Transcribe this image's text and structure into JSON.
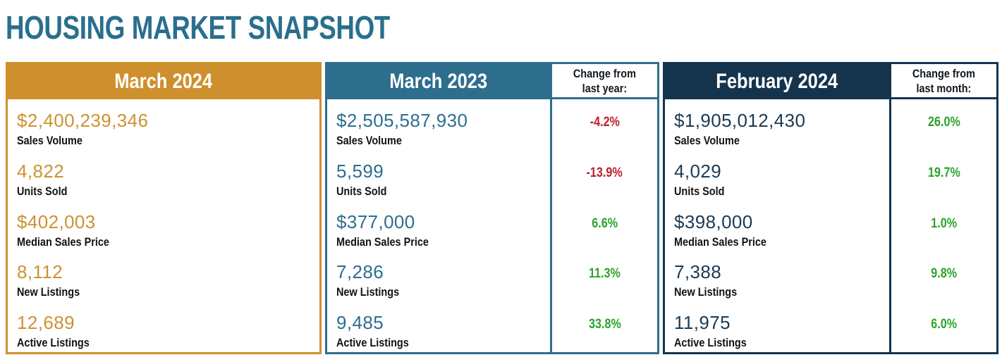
{
  "page": {
    "title": "HOUSING MARKET SNAPSHOT"
  },
  "colors": {
    "title_teal": "#2A6E8E",
    "gold": "#CE902C",
    "teal": "#2D6E8D",
    "navy": "#14344E",
    "positive_green": "#2BA32B",
    "negative_red": "#BC1F2E"
  },
  "panels": [
    {
      "title": "March 2024",
      "theme": "gold",
      "rows": [
        {
          "value": "$2,400,239,346",
          "label": "Sales Volume"
        },
        {
          "value": "4,822",
          "label": "Units Sold"
        },
        {
          "value": "$402,003",
          "label": "Median Sales Price"
        },
        {
          "value": "8,112",
          "label": "New Listings"
        },
        {
          "value": "12,689",
          "label": "Active Listings"
        }
      ]
    },
    {
      "title": "March 2023",
      "theme": "teal",
      "change_header": {
        "line1": "Change from",
        "line2": "last year:"
      },
      "rows": [
        {
          "value": "$2,505,587,930",
          "label": "Sales Volume",
          "change": "-4.2%",
          "trend": "negative"
        },
        {
          "value": "5,599",
          "label": "Units Sold",
          "change": "-13.9%",
          "trend": "negative"
        },
        {
          "value": "$377,000",
          "label": "Median Sales Price",
          "change": "6.6%",
          "trend": "positive"
        },
        {
          "value": "7,286",
          "label": "New Listings",
          "change": "11.3%",
          "trend": "positive"
        },
        {
          "value": "9,485",
          "label": "Active Listings",
          "change": "33.8%",
          "trend": "positive"
        }
      ]
    },
    {
      "title": "February 2024",
      "theme": "navy",
      "change_header": {
        "line1": "Change from",
        "line2": "last month:"
      },
      "rows": [
        {
          "value": "$1,905,012,430",
          "label": "Sales Volume",
          "change": "26.0%",
          "trend": "positive"
        },
        {
          "value": "4,029",
          "label": "Units Sold",
          "change": "19.7%",
          "trend": "positive"
        },
        {
          "value": "$398,000",
          "label": "Median Sales Price",
          "change": "1.0%",
          "trend": "positive"
        },
        {
          "value": "7,388",
          "label": "New Listings",
          "change": "9.8%",
          "trend": "positive"
        },
        {
          "value": "11,975",
          "label": "Active Listings",
          "change": "6.0%",
          "trend": "positive"
        }
      ]
    }
  ],
  "chart_data": {
    "type": "table",
    "title": "HOUSING MARKET SNAPSHOT",
    "metrics": [
      "Sales Volume",
      "Units Sold",
      "Median Sales Price",
      "New Listings",
      "Active Listings"
    ],
    "columns": [
      "March 2024",
      "March 2023",
      "Change from last year:",
      "February 2024",
      "Change from last month:"
    ],
    "series": [
      {
        "name": "March 2024",
        "values": [
          "$2,400,239,346",
          "4,822",
          "$402,003",
          "8,112",
          "12,689"
        ]
      },
      {
        "name": "March 2023",
        "values": [
          "$2,505,587,930",
          "5,599",
          "$377,000",
          "7,286",
          "9,485"
        ]
      },
      {
        "name": "Change from last year:",
        "values": [
          "-4.2%",
          "-13.9%",
          "6.6%",
          "11.3%",
          "33.8%"
        ]
      },
      {
        "name": "February 2024",
        "values": [
          "$1,905,012,430",
          "4,029",
          "$398,000",
          "7,388",
          "11,975"
        ]
      },
      {
        "name": "Change from last month:",
        "values": [
          "26.0%",
          "19.7%",
          "1.0%",
          "9.8%",
          "6.0%"
        ]
      }
    ]
  }
}
